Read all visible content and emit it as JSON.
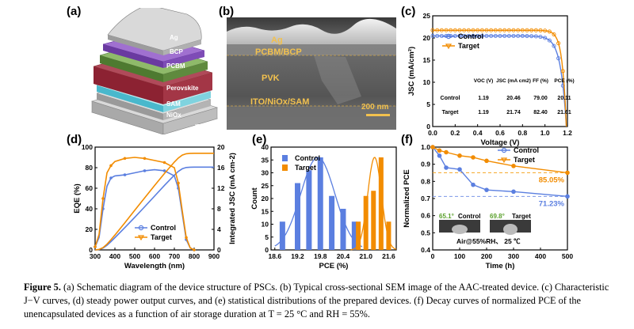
{
  "colors": {
    "control": "#5b7fe0",
    "target": "#f28c00",
    "ctrl_light": "#7b96e8",
    "tgt_light": "#f5a623"
  },
  "panels": {
    "a": "(a)",
    "b": "(b)",
    "c": "(c)",
    "d": "(d)",
    "e": "(e)",
    "f": "(f)"
  },
  "panel_a": {
    "layers": [
      "Ag",
      "BCP",
      "PCBM",
      "Perovskite",
      "SAM",
      "NiOx",
      "ITO"
    ]
  },
  "panel_b": {
    "labels": [
      "Ag",
      "PCBM/BCP",
      "PVK",
      "ITO/NiOx/SAM"
    ],
    "scale_bar": "200 nm"
  },
  "panel_c_table": {
    "headers": [
      "",
      "VOC (V)",
      "JSC (mA cm2)",
      "FF (%)",
      "PCE (%)"
    ],
    "rows": [
      [
        "Control",
        "1.19",
        "20.46",
        "79.00",
        "20.11"
      ],
      [
        "Target",
        "1.19",
        "21.74",
        "82.40",
        "21.61"
      ]
    ]
  },
  "panel_f_labels": {
    "final_target": "85.05%",
    "final_control": "71.23%",
    "contact_control_angle": "65.1°",
    "contact_control_label": "Control",
    "contact_target_angle": "69.8°",
    "contact_target_label": "Target",
    "condition": "Air@55%RH、 25 ℃"
  },
  "chart_data": [
    {
      "id": "c",
      "type": "line",
      "title": "",
      "xlabel": "Voltage (V)",
      "ylabel": "JSC (mA/cm²)",
      "xlim": [
        0.0,
        1.2
      ],
      "ylim": [
        0,
        25
      ],
      "xticks": [
        0.0,
        0.2,
        0.4,
        0.6,
        0.8,
        1.0,
        1.2
      ],
      "yticks": [
        0,
        5,
        10,
        15,
        20,
        25
      ],
      "legend": [
        "Control",
        "Target"
      ],
      "series": [
        {
          "name": "Control",
          "voc": 1.19,
          "jsc": 20.46,
          "k": 0.05
        },
        {
          "name": "Target",
          "voc": 1.19,
          "jsc": 21.74,
          "k": 0.035
        }
      ]
    },
    {
      "id": "d",
      "type": "line",
      "xlabel": "Wavelength (nm)",
      "ylabel": "EQE (%)",
      "y2label": "Integrated JSC (mA cm-2)",
      "xlim": [
        300,
        900
      ],
      "ylim": [
        0,
        100
      ],
      "y2lim": [
        0,
        20
      ],
      "xticks": [
        300,
        400,
        500,
        600,
        700,
        800,
        900
      ],
      "yticks": [
        0,
        20,
        40,
        60,
        80,
        100
      ],
      "y2ticks": [
        0,
        4,
        8,
        12,
        16,
        20
      ],
      "legend": [
        "Control",
        "Target"
      ],
      "series": [
        {
          "name": "Control",
          "eqe_x": [
            300,
            320,
            340,
            360,
            380,
            400,
            450,
            500,
            550,
            600,
            650,
            700,
            720,
            740,
            760,
            780,
            800
          ],
          "eqe_y": [
            3,
            12,
            40,
            62,
            70,
            72,
            73,
            75,
            77,
            78,
            77,
            72,
            60,
            35,
            10,
            2,
            0
          ],
          "int_final": 16.1
        },
        {
          "name": "Target",
          "eqe_x": [
            300,
            320,
            340,
            360,
            380,
            400,
            450,
            500,
            550,
            600,
            650,
            700,
            720,
            740,
            760,
            780,
            800
          ],
          "eqe_y": [
            3,
            15,
            50,
            75,
            82,
            86,
            89,
            90,
            89,
            87,
            85,
            80,
            65,
            38,
            12,
            2,
            0
          ],
          "int_final": 18.8
        }
      ]
    },
    {
      "id": "e",
      "type": "bar",
      "xlabel": "PCE (%)",
      "ylabel": "Count",
      "xlim": [
        18.5,
        21.8
      ],
      "ylim": [
        0,
        40
      ],
      "xticks": [
        18.6,
        19.2,
        19.8,
        20.4,
        21.0,
        21.6
      ],
      "yticks": [
        0,
        5,
        10,
        15,
        20,
        25,
        30,
        35,
        40
      ],
      "legend": [
        "Control",
        "Target"
      ],
      "series": [
        {
          "name": "Control",
          "x": [
            18.8,
            19.2,
            19.5,
            19.8,
            20.1,
            20.4,
            20.7
          ],
          "values": [
            11,
            26,
            31,
            36,
            21,
            16,
            11
          ]
        },
        {
          "name": "Target",
          "x": [
            20.8,
            21.0,
            21.2,
            21.4,
            21.6
          ],
          "values": [
            11,
            21,
            23,
            36,
            11
          ]
        }
      ]
    },
    {
      "id": "f",
      "type": "line",
      "xlabel": "Time (h)",
      "ylabel": "Normalized PCE",
      "xlim": [
        0,
        500
      ],
      "ylim": [
        0.4,
        1.0
      ],
      "xticks": [
        0,
        100,
        200,
        300,
        400,
        500
      ],
      "yticks": [
        0.4,
        0.5,
        0.6,
        0.7,
        0.8,
        0.9,
        1.0
      ],
      "legend": [
        "Control",
        "Target"
      ],
      "series": [
        {
          "name": "Control",
          "x": [
            0,
            25,
            50,
            100,
            150,
            200,
            300,
            500
          ],
          "values": [
            1.0,
            0.95,
            0.88,
            0.87,
            0.78,
            0.75,
            0.74,
            0.7123
          ]
        },
        {
          "name": "Target",
          "x": [
            0,
            25,
            50,
            100,
            150,
            200,
            300,
            500
          ],
          "values": [
            1.0,
            0.98,
            0.97,
            0.95,
            0.94,
            0.92,
            0.89,
            0.8505
          ]
        }
      ]
    }
  ],
  "caption": {
    "prefix": "Figure 5.",
    "text": " (a) Schematic diagram of the device structure of PSCs. (b) Typical cross-sectional SEM image of the AAC-treated device. (c) Characteristic J−V curves, (d) steady power output curves, and (e) statistical distributions of the prepared devices. (f) Decay curves of normalized PCE of the unencapsulated devices as a function of air storage duration at T = 25 °C and RH = 55%."
  }
}
